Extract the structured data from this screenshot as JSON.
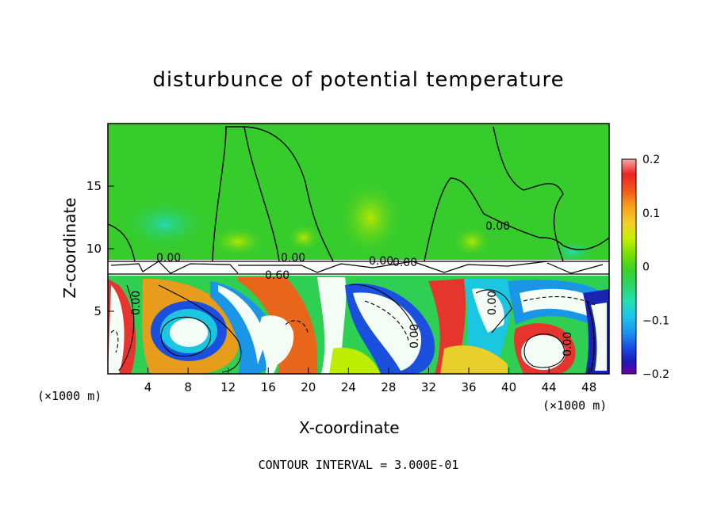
{
  "chart_data": {
    "type": "heatmap",
    "title": "disturbunce of potential temperature",
    "xlabel": "X-coordinate",
    "ylabel": "Z-coordinate",
    "x_unit": "(×1000 m)",
    "x_ticks": [
      4,
      8,
      12,
      16,
      20,
      24,
      28,
      32,
      36,
      40,
      44,
      48
    ],
    "y_ticks": [
      5,
      10,
      15
    ],
    "xlim": [
      0,
      50
    ],
    "ylim": [
      0,
      20
    ],
    "colorbar": {
      "ticks": [
        "0.2",
        "0.1",
        "0",
        "−0.1",
        "−0.2"
      ],
      "range": [
        -0.2,
        0.2
      ],
      "colors": [
        "#f4a9a9",
        "#ef2222",
        "#f35a1a",
        "#f7a11a",
        "#f3d02a",
        "#c6ef00",
        "#7be000",
        "#36d12a",
        "#2ad66a",
        "#25e0b0",
        "#1ac7e8",
        "#1a93ef",
        "#1a4ae6",
        "#1a1ab8",
        "#6a00a0"
      ]
    },
    "contour_labels": [
      "0.00",
      "0.00",
      "0.00",
      "0.00",
      "0.60",
      "0.00",
      "0.00",
      "0.00",
      "0.00",
      "0.00"
    ],
    "annotation": "CONTOUR INTERVAL = 3.000E-01"
  }
}
